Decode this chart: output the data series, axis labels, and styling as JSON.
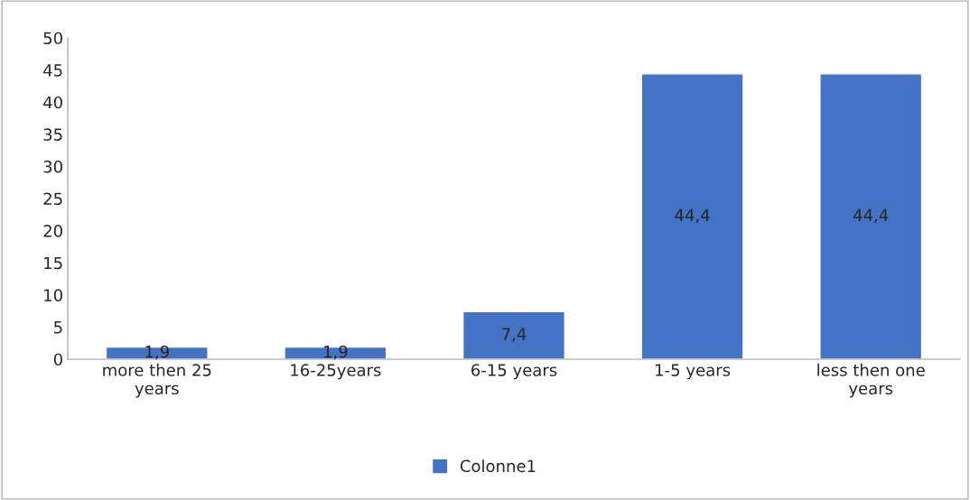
{
  "chart_data": {
    "type": "bar",
    "categories": [
      "more then 25\nyears",
      "16-25years",
      "6-15 years",
      "1-5 years",
      "less then one\nyears"
    ],
    "series": [
      {
        "name": "Colonne1",
        "color": "#4472c4",
        "values": [
          1.9,
          1.9,
          7.4,
          44.4,
          44.4
        ],
        "value_labels": [
          "1,9",
          "1,9",
          "7,4",
          "44,4",
          "44,4"
        ]
      }
    ],
    "ylim": [
      0,
      50
    ],
    "yticks": [
      0,
      5,
      10,
      15,
      20,
      25,
      30,
      35,
      40,
      45,
      50
    ],
    "grid": false,
    "legend": "bottom"
  }
}
